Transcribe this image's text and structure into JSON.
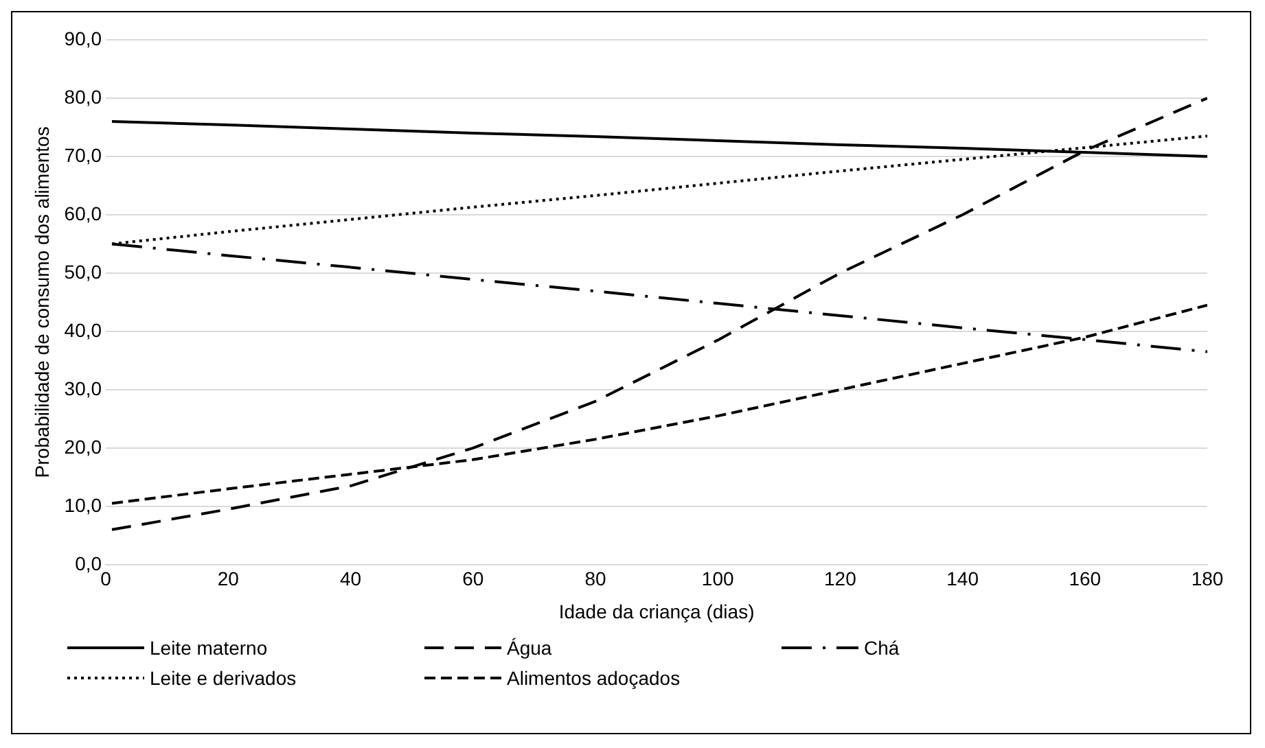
{
  "chart_data": {
    "type": "line",
    "xlabel": "Idade da criança (dias)",
    "ylabel": "Probabilidade de consumo dos alimentos",
    "x": [
      1,
      20,
      40,
      60,
      80,
      100,
      120,
      140,
      160,
      180
    ],
    "series": [
      {
        "name": "Leite materno",
        "color": "#000000",
        "line_style": "solid",
        "values": [
          76,
          75.4,
          74.7,
          74,
          73.4,
          72.7,
          72,
          71.4,
          70.7,
          70
        ]
      },
      {
        "name": "Água",
        "color": "#000000",
        "line_style": "dashed",
        "values": [
          6,
          9.5,
          13.5,
          20,
          28,
          38.5,
          50,
          60,
          71,
          80
        ]
      },
      {
        "name": "Chá",
        "color": "#000000",
        "line_style": "dashed",
        "values": [
          55,
          53,
          51,
          48.9,
          46.9,
          44.8,
          42.7,
          40.6,
          38.6,
          36.5
        ]
      },
      {
        "name": "Leite e derivados",
        "color": "#000000",
        "line_style": "dotted",
        "values": [
          55,
          57.1,
          59.2,
          61.3,
          63.3,
          65.4,
          67.5,
          69.5,
          71.5,
          73.5
        ]
      },
      {
        "name": "Alimentos adoçados",
        "color": "#000000",
        "line_style": "dashed",
        "values": [
          10.5,
          13,
          15.5,
          18,
          21.5,
          25.5,
          30,
          34.5,
          39,
          44.5
        ]
      }
    ],
    "xlim": [
      0,
      180
    ],
    "xticks": [
      0,
      20,
      40,
      60,
      80,
      100,
      120,
      140,
      160,
      180
    ],
    "ylim": [
      0,
      90
    ],
    "yticks": [
      {
        "value": 0,
        "label": "0,0"
      },
      {
        "value": 10,
        "label": "10,0"
      },
      {
        "value": 20,
        "label": "20,0"
      },
      {
        "value": 30,
        "label": "30,0"
      },
      {
        "value": 40,
        "label": "40,0"
      },
      {
        "value": 50,
        "label": "50,0"
      },
      {
        "value": 60,
        "label": "60,0"
      },
      {
        "value": 70,
        "label": "70,0"
      },
      {
        "value": 80,
        "label": "80,0"
      },
      {
        "value": 90,
        "label": "90,0"
      }
    ],
    "grid": "y",
    "legend": "bottom",
    "marker": "none"
  }
}
